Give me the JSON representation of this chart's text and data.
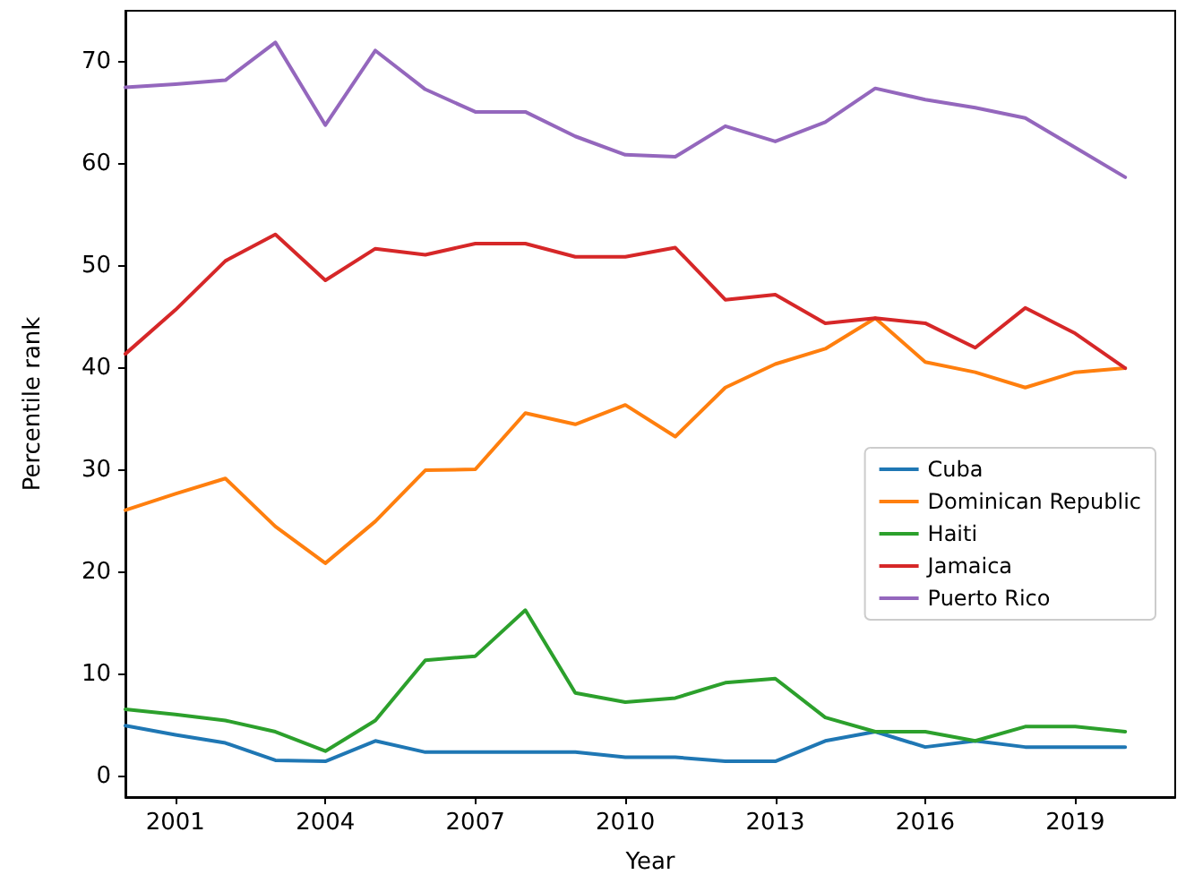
{
  "chart_data": {
    "type": "line",
    "xlabel": "Year",
    "ylabel": "Percentile rank",
    "x": [
      2000,
      2001,
      2002,
      2003,
      2004,
      2005,
      2006,
      2007,
      2008,
      2009,
      2010,
      2011,
      2012,
      2013,
      2014,
      2015,
      2016,
      2017,
      2018,
      2019,
      2020
    ],
    "series": [
      {
        "name": "Cuba",
        "color": "#1f77b4",
        "values": [
          5.0,
          4.1,
          3.3,
          1.6,
          1.5,
          3.5,
          2.4,
          2.4,
          2.4,
          2.4,
          1.9,
          1.9,
          1.5,
          1.5,
          3.5,
          4.4,
          2.9,
          3.5,
          2.9,
          2.9,
          2.9
        ]
      },
      {
        "name": "Dominican Republic",
        "color": "#ff7f0e",
        "values": [
          26.1,
          27.7,
          29.2,
          24.5,
          20.9,
          25.0,
          30.0,
          30.1,
          35.6,
          34.5,
          36.4,
          33.3,
          38.1,
          40.4,
          41.9,
          44.9,
          40.6,
          39.6,
          38.1,
          39.6,
          40.0
        ]
      },
      {
        "name": "Haiti",
        "color": "#2ca02c",
        "values": [
          6.6,
          6.1,
          5.5,
          4.4,
          2.5,
          5.5,
          11.4,
          11.8,
          16.3,
          8.2,
          7.3,
          7.7,
          9.2,
          9.6,
          5.8,
          4.4,
          4.4,
          3.5,
          4.9,
          4.9,
          4.4
        ]
      },
      {
        "name": "Jamaica",
        "color": "#d62728",
        "values": [
          41.4,
          45.7,
          50.5,
          53.1,
          48.6,
          51.7,
          51.1,
          52.2,
          52.2,
          50.9,
          50.9,
          51.8,
          46.7,
          47.2,
          44.4,
          44.9,
          44.4,
          42.0,
          45.9,
          43.4,
          40.0
        ]
      },
      {
        "name": "Puerto Rico",
        "color": "#9467bd",
        "values": [
          67.5,
          67.8,
          68.2,
          71.9,
          63.8,
          71.1,
          67.3,
          65.1,
          65.1,
          62.7,
          60.9,
          60.7,
          63.7,
          62.2,
          64.1,
          67.4,
          66.3,
          65.5,
          64.5,
          61.6,
          58.7
        ]
      }
    ],
    "xlim": [
      2000,
      2021
    ],
    "xticks": [
      2001,
      2004,
      2007,
      2010,
      2013,
      2016,
      2019
    ],
    "ylim": [
      -2,
      75
    ],
    "yticks": [
      0,
      10,
      20,
      30,
      40,
      50,
      60,
      70
    ],
    "grid": false,
    "legend": "right",
    "marker": "none",
    "line_style": "solid"
  }
}
